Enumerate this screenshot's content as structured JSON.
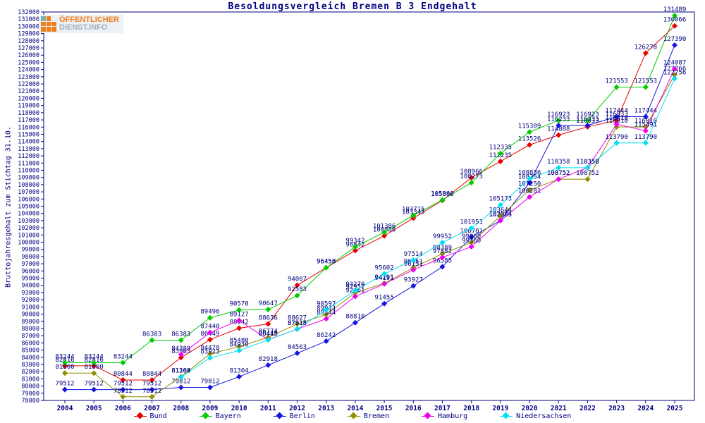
{
  "title": "Besoldungsvergleich Bremen B 3 Endgehalt",
  "logo": {
    "line1": "ÖFFENTLICHER",
    "line2": "DIENST.INFO"
  },
  "y_axis_title": "Bruttojahresgehalt zum Stichtag 31.10.",
  "colors": {
    "text": "#000080",
    "axis": "#000080",
    "background": "#ffffff"
  },
  "legend": [
    {
      "label": "Bund",
      "color": "#e80000"
    },
    {
      "label": "Bayern",
      "color": "#00cc00"
    },
    {
      "label": "Berlin",
      "color": "#1515e0"
    },
    {
      "label": "Bremen",
      "color": "#8f8f00"
    },
    {
      "label": "Hamburg",
      "color": "#ee00ee"
    },
    {
      "label": "Niedersachsen",
      "color": "#00e0f0"
    }
  ],
  "chart_data": {
    "type": "line",
    "title": "Besoldungsvergleich Bremen B 3 Endgehalt",
    "xlabel": "",
    "ylabel": "Bruttojahresgehalt zum Stichtag 31.10.",
    "x": [
      2004,
      2005,
      2006,
      2007,
      2008,
      2009,
      2010,
      2011,
      2012,
      2013,
      2014,
      2015,
      2016,
      2017,
      2018,
      2019,
      2020,
      2021,
      2022,
      2023,
      2024,
      2025
    ],
    "ylim": [
      78000,
      132000
    ],
    "ytick_step": 1000,
    "grid": false,
    "legend_position": "bottom",
    "point_labels": true,
    "series": [
      {
        "name": "Bund",
        "color": "#e80000",
        "values": [
          82816,
          82816,
          80844,
          80844,
          83963,
          86449,
          88042,
          88636,
          94007,
          96458,
          98842,
          100886,
          103345,
          105809,
          108966,
          111235,
          113526,
          114888,
          116033,
          116933,
          126278,
          130066
        ]
      },
      {
        "name": "Bayern",
        "color": "#00cc00",
        "values": [
          83244,
          83244,
          83244,
          86383,
          86383,
          89496,
          90570,
          90647,
          92583,
          96450,
          99342,
          101386,
          103715,
          105860,
          108273,
          112335,
          115309,
          116923,
          116923,
          121553,
          121553,
          131489
        ]
      },
      {
        "name": "Berlin",
        "color": "#1515e0",
        "values": [
          79512,
          79512,
          79512,
          79512,
          79812,
          79812,
          81304,
          82918,
          84563,
          86242,
          88810,
          91455,
          93927,
          96585,
          100701,
          103024,
          108254,
          116233,
          116233,
          117444,
          117444,
          127390
        ]
      },
      {
        "name": "Bremen",
        "color": "#8f8f00",
        "values": [
          81800,
          81800,
          78512,
          78512,
          81304,
          84478,
          85480,
          86774,
          88627,
          89944,
          92957,
          94291,
          96451,
          98389,
          99960,
          103644,
          107250,
          108752,
          108752,
          116010,
          116010,
          123266
        ]
      },
      {
        "name": "Hamburg",
        "color": "#ee00ee",
        "values": [
          null,
          null,
          null,
          null,
          84389,
          87440,
          89127,
          86449,
          87915,
          89344,
          92461,
          94191,
          96151,
          97882,
          99360,
          102985,
          106281,
          108752,
          110358,
          116410,
          115491,
          124087
        ]
      },
      {
        "name": "Niedersachsen",
        "color": "#00e0f0",
        "values": [
          null,
          null,
          null,
          null,
          81260,
          83923,
          84930,
          86415,
          87918,
          90597,
          93270,
          95602,
          97514,
          99952,
          101951,
          105173,
          108836,
          110358,
          110358,
          113790,
          113790,
          122756
        ]
      }
    ]
  }
}
